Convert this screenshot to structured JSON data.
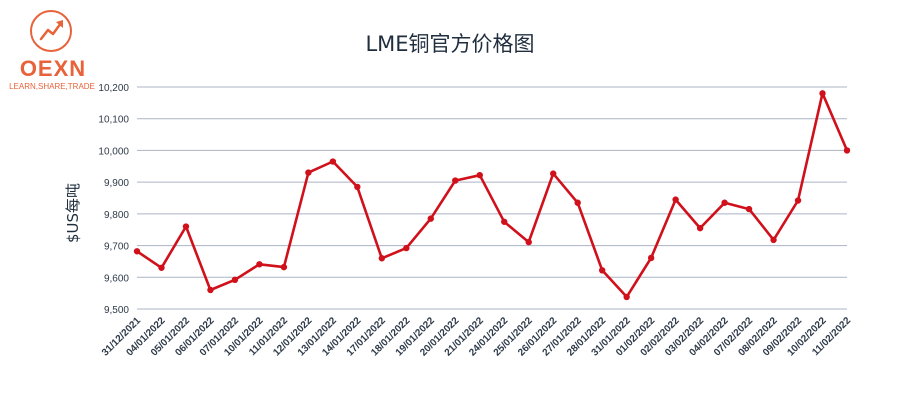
{
  "logo": {
    "name": "OEXN",
    "tagline": "LEARN,SHARE,TRADE",
    "icon": "rising-arrow-icon",
    "color": "#e8623a"
  },
  "chart_data": {
    "type": "line",
    "title": "LME铜官方价格图",
    "xlabel": "",
    "ylabel": "$US每吨",
    "ylim": [
      9500,
      10200
    ],
    "yticks": [
      "9,500",
      "9,600",
      "9,700",
      "9,800",
      "9,900",
      "10,000",
      "10,100",
      "10,200"
    ],
    "grid": true,
    "line_color": "#d0101b",
    "categories": [
      "31/12/2021",
      "04/01/2022",
      "05/01/2022",
      "06/01/2022",
      "07/01/2022",
      "10/01/2022",
      "11/01/2022",
      "12/01/2022",
      "13/01/2022",
      "14/01/2022",
      "17/01/2022",
      "18/01/2022",
      "19/01/2022",
      "20/01/2022",
      "21/01/2022",
      "24/01/2022",
      "25/01/2022",
      "26/01/2022",
      "27/01/2022",
      "28/01/2022",
      "31/01/2022",
      "01/02/2022",
      "02/02/2022",
      "03/02/2022",
      "04/02/2022",
      "07/02/2022",
      "08/02/2022",
      "09/02/2022",
      "10/02/2022",
      "11/02/2022"
    ],
    "values": [
      9682,
      9630,
      9760,
      9560,
      9592,
      9641,
      9632,
      9930,
      9965,
      9885,
      9660,
      9692,
      9785,
      9905,
      9922,
      9775,
      9711,
      9927,
      9835,
      9622,
      9538,
      9661,
      9845,
      9755,
      9835,
      9815,
      9718,
      9842,
      10180,
      10000
    ]
  }
}
